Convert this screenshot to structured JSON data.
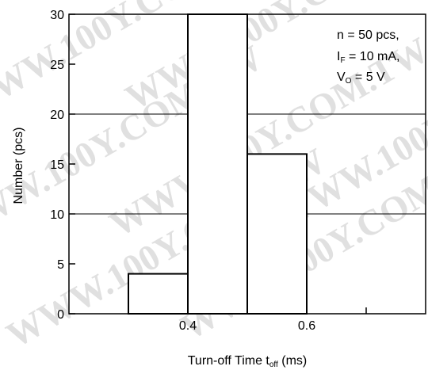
{
  "chart_data": {
    "type": "bar",
    "bins": [
      {
        "from": 0.3,
        "to": 0.4,
        "value": 4
      },
      {
        "from": 0.4,
        "to": 0.5,
        "value": 30
      },
      {
        "from": 0.5,
        "to": 0.6,
        "value": 16
      }
    ],
    "xlim": [
      0.2,
      0.8
    ],
    "ylim": [
      0,
      30
    ],
    "xticks": [
      0.4,
      0.6
    ],
    "xtick_labels": [
      "0.4",
      "0.6"
    ],
    "yticks": [
      0,
      5,
      10,
      15,
      20,
      25,
      30
    ],
    "ytick_labels": [
      "0",
      "5",
      "10",
      "15",
      "20",
      "25",
      "30"
    ],
    "xlabel_main": "Turn-off Time  t",
    "xlabel_sub": "off",
    "xlabel_unit": " (ms)",
    "ylabel": "Number  (pcs)",
    "horizontal_gridlines_at": [
      10,
      20
    ],
    "annotation": {
      "line1": "n = 50 pcs,",
      "line2_main": "I",
      "line2_sub": "F",
      "line2_rest": " = 10 mA,",
      "line3_main": "V",
      "line3_sub": "O",
      "line3_rest": " = 5 V"
    }
  },
  "watermark": "WWW.100Y.COM.TW"
}
